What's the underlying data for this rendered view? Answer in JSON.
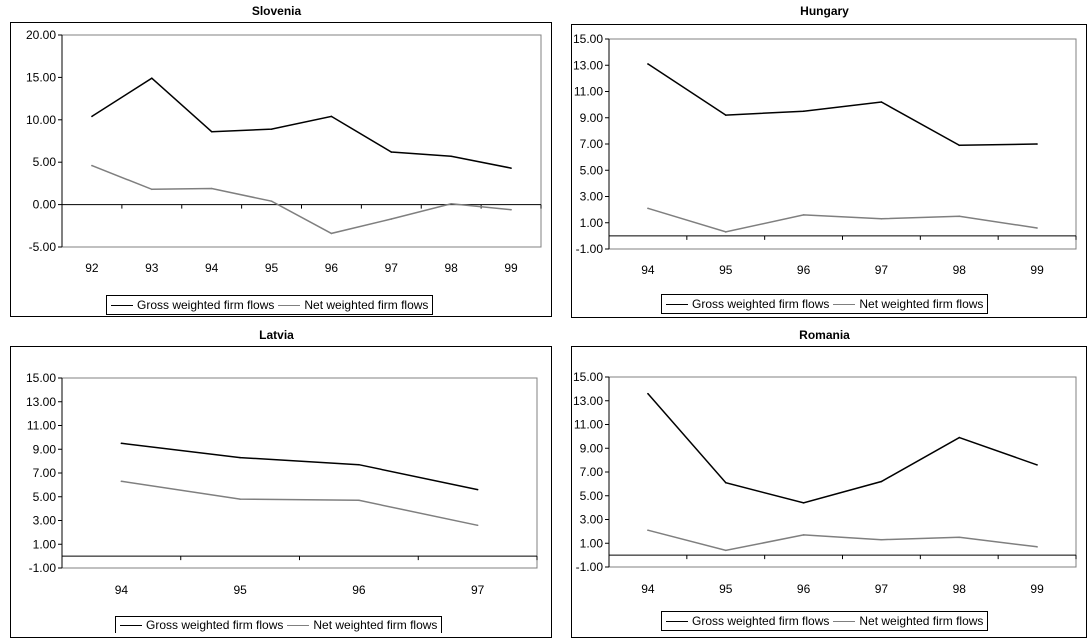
{
  "colors": {
    "gross": "#000000",
    "net": "#7f7f7f",
    "plot_border": "#808080",
    "frame": "#000000"
  },
  "chart_data": [
    {
      "type": "line",
      "title": "Slovenia",
      "categories": [
        "92",
        "93",
        "94",
        "95",
        "96",
        "97",
        "98",
        "99"
      ],
      "ylim": [
        -5,
        20
      ],
      "yticks": [
        "-5.00",
        "0.00",
        "5.00",
        "10.00",
        "15.00",
        "20.00"
      ],
      "ytick_values": [
        -5,
        0,
        5,
        10,
        15,
        20
      ],
      "grid": false,
      "legend_position": "bottom",
      "series": [
        {
          "name": "Gross weighted firm flows",
          "values": [
            10.4,
            14.9,
            8.6,
            8.9,
            10.4,
            6.2,
            5.7,
            4.3
          ]
        },
        {
          "name": "Net weighted firm flows",
          "values": [
            4.6,
            1.8,
            1.9,
            0.4,
            -3.4,
            -1.7,
            0.1,
            -0.6
          ]
        }
      ]
    },
    {
      "type": "line",
      "title": "Hungary",
      "categories": [
        "94",
        "95",
        "96",
        "97",
        "98",
        "99"
      ],
      "ylim": [
        -1,
        15
      ],
      "yticks": [
        "-1.00",
        "1.00",
        "3.00",
        "5.00",
        "7.00",
        "9.00",
        "11.00",
        "13.00",
        "15.00"
      ],
      "ytick_values": [
        -1,
        1,
        3,
        5,
        7,
        9,
        11,
        13,
        15
      ],
      "grid": false,
      "legend_position": "bottom",
      "series": [
        {
          "name": "Gross weighted firm flows",
          "values": [
            13.1,
            9.2,
            9.5,
            10.2,
            6.9,
            7.0
          ]
        },
        {
          "name": "Net weighted firm flows",
          "values": [
            2.1,
            0.3,
            1.6,
            1.3,
            1.5,
            0.6
          ]
        }
      ]
    },
    {
      "type": "line",
      "title": "Latvia",
      "categories": [
        "94",
        "95",
        "96",
        "97"
      ],
      "ylim": [
        -1,
        15
      ],
      "yticks": [
        "-1.00",
        "1.00",
        "3.00",
        "5.00",
        "7.00",
        "9.00",
        "11.00",
        "13.00",
        "15.00"
      ],
      "ytick_values": [
        -1,
        1,
        3,
        5,
        7,
        9,
        11,
        13,
        15
      ],
      "grid": false,
      "legend_position": "bottom",
      "series": [
        {
          "name": "Gross weighted firm flows",
          "values": [
            9.5,
            8.3,
            7.7,
            5.6
          ]
        },
        {
          "name": "Net weighted firm flows",
          "values": [
            6.3,
            4.8,
            4.7,
            2.6
          ]
        }
      ]
    },
    {
      "type": "line",
      "title": "Romania",
      "categories": [
        "94",
        "95",
        "96",
        "97",
        "98",
        "99"
      ],
      "ylim": [
        -1,
        15
      ],
      "yticks": [
        "-1.00",
        "1.00",
        "3.00",
        "5.00",
        "7.00",
        "9.00",
        "11.00",
        "13.00",
        "15.00"
      ],
      "ytick_values": [
        -1,
        1,
        3,
        5,
        7,
        9,
        11,
        13,
        15
      ],
      "grid": false,
      "legend_position": "bottom",
      "series": [
        {
          "name": "Gross weighted firm flows",
          "values": [
            13.6,
            6.1,
            4.4,
            6.2,
            9.9,
            7.6
          ]
        },
        {
          "name": "Net weighted firm flows",
          "values": [
            2.1,
            0.4,
            1.7,
            1.3,
            1.5,
            0.7
          ]
        }
      ]
    }
  ]
}
